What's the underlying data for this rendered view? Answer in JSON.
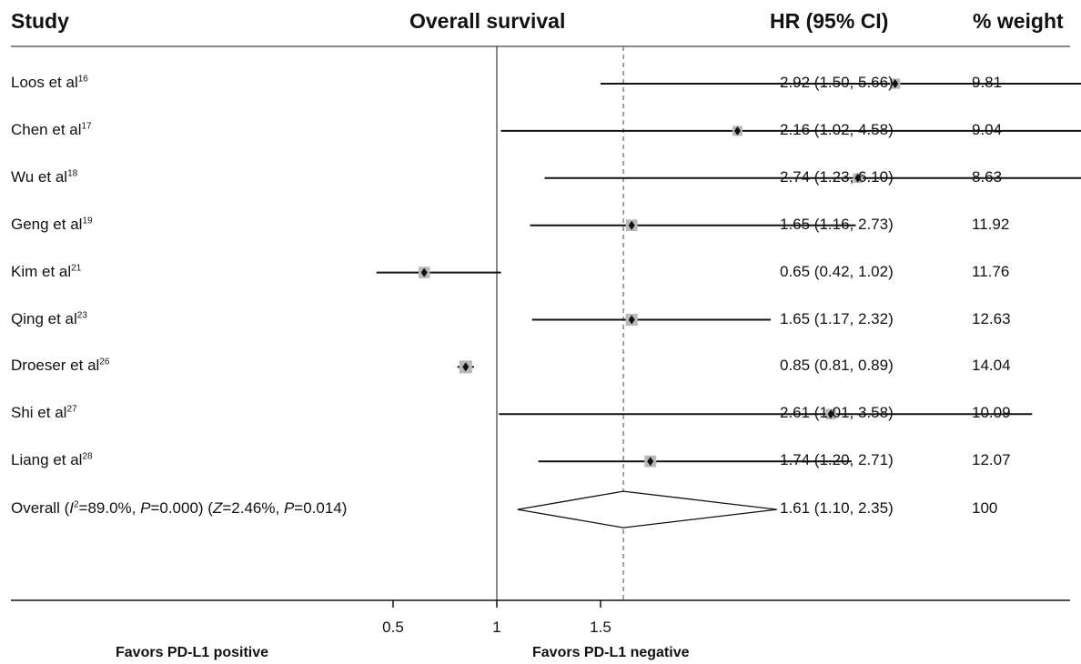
{
  "header": {
    "study": "Study",
    "outcome": "Overall survival",
    "hr": "HR (95% CI)",
    "weight": "% weight"
  },
  "chart_data": {
    "type": "forest",
    "x_axis": {
      "ticks": [
        0.5,
        1,
        1.5
      ],
      "tick_labels": [
        "0.5",
        "1",
        "1.5"
      ]
    },
    "reference_line": 1,
    "pooled_line": 1.61,
    "favors_left": "Favors PD-L1 positive",
    "favors_right": "Favors PD-L1 negative",
    "studies": [
      {
        "name": "Loos et al",
        "ref": "16",
        "hr": 2.92,
        "lo": 1.5,
        "hi": 5.66,
        "hr_text": "2.92 (1.50, 5.66)",
        "weight": "9.81",
        "w": 9.81
      },
      {
        "name": "Chen et al",
        "ref": "17",
        "hr": 2.16,
        "lo": 1.02,
        "hi": 4.58,
        "hr_text": "2.16 (1.02, 4.58)",
        "weight": "9.04",
        "w": 9.04
      },
      {
        "name": "Wu et al",
        "ref": "18",
        "hr": 2.74,
        "lo": 1.23,
        "hi": 6.1,
        "hr_text": "2.74 (1.23, 6.10)",
        "weight": "8.63",
        "w": 8.63
      },
      {
        "name": "Geng et al",
        "ref": "19",
        "hr": 1.65,
        "lo": 1.16,
        "hi": 2.73,
        "hr_text": "1.65 (1.16, 2.73)",
        "weight": "11.92",
        "w": 11.92
      },
      {
        "name": "Kim et al",
        "ref": "21",
        "hr": 0.65,
        "lo": 0.42,
        "hi": 1.02,
        "hr_text": "0.65 (0.42, 1.02)",
        "weight": "11.76",
        "w": 11.76
      },
      {
        "name": "Qing et al",
        "ref": "23",
        "hr": 1.65,
        "lo": 1.17,
        "hi": 2.32,
        "hr_text": "1.65 (1.17, 2.32)",
        "weight": "12.63",
        "w": 12.63
      },
      {
        "name": "Droeser et al",
        "ref": "26",
        "hr": 0.85,
        "lo": 0.81,
        "hi": 0.89,
        "hr_text": "0.85 (0.81, 0.89)",
        "weight": "14.04",
        "w": 14.04
      },
      {
        "name": "Shi et al",
        "ref": "27",
        "hr": 2.61,
        "lo": 1.01,
        "hi": 3.58,
        "hr_text": "2.61 (1.01, 3.58)",
        "weight": "10.09",
        "w": 10.09
      },
      {
        "name": "Liang et al",
        "ref": "28",
        "hr": 1.74,
        "lo": 1.2,
        "hi": 2.71,
        "hr_text": "1.74 (1.20, 2.71)",
        "weight": "12.07",
        "w": 12.07
      }
    ],
    "overall": {
      "label_parts": [
        "Overall (",
        "I",
        "2",
        "=89.0%, ",
        "P",
        "=0.000) (",
        "Z",
        "=2.46%, ",
        "P",
        "=0.014)"
      ],
      "hr": 1.61,
      "lo": 1.1,
      "hi": 2.35,
      "hr_text": "1.61 (1.10, 2.35)",
      "weight": "100"
    }
  }
}
